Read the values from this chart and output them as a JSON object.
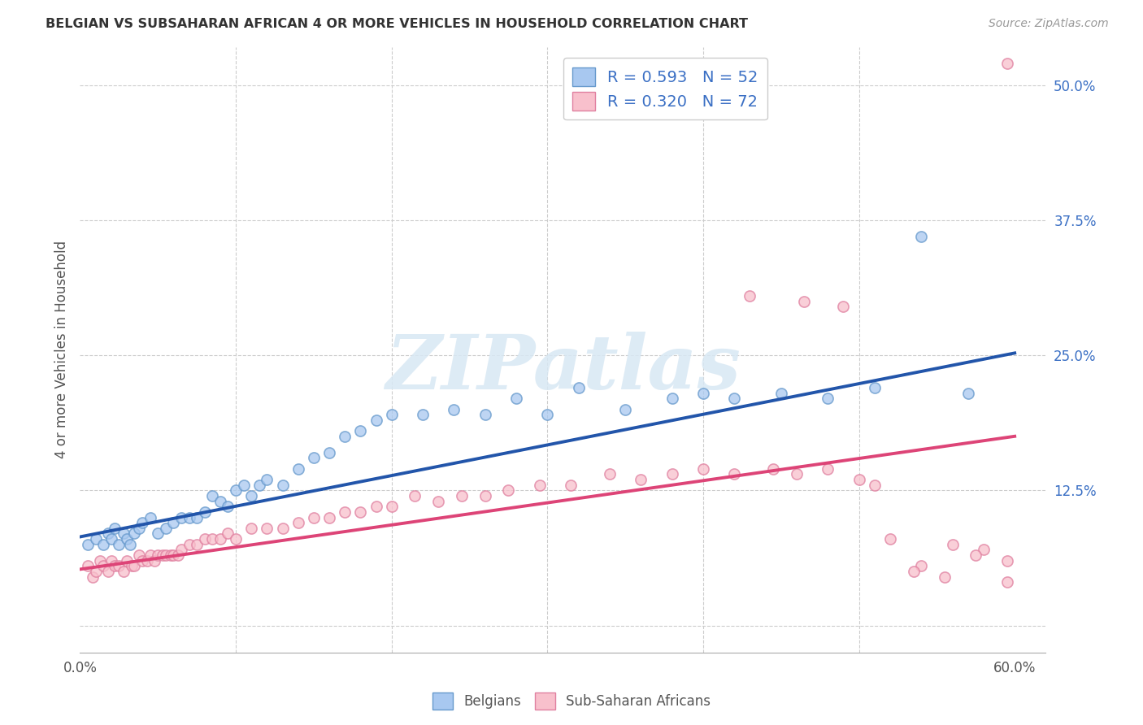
{
  "title": "BELGIAN VS SUBSAHARAN AFRICAN 4 OR MORE VEHICLES IN HOUSEHOLD CORRELATION CHART",
  "source": "Source: ZipAtlas.com",
  "ylabel": "4 or more Vehicles in Household",
  "xlim": [
    0.0,
    0.62
  ],
  "ylim": [
    -0.025,
    0.535
  ],
  "xticks": [
    0.0,
    0.1,
    0.2,
    0.3,
    0.4,
    0.5,
    0.6
  ],
  "xticklabels": [
    "0.0%",
    "",
    "",
    "",
    "",
    "",
    "60.0%"
  ],
  "ytick_positions": [
    0.0,
    0.125,
    0.25,
    0.375,
    0.5
  ],
  "yticklabels_right": [
    "",
    "12.5%",
    "25.0%",
    "37.5%",
    "50.0%"
  ],
  "blue_color": "#A8C8F0",
  "blue_edge_color": "#6699CC",
  "blue_line_color": "#2255AA",
  "pink_color": "#F8C0CC",
  "pink_edge_color": "#E080A0",
  "pink_line_color": "#DD4477",
  "blue_r": "0.593",
  "blue_n": "52",
  "pink_r": "0.320",
  "pink_n": "72",
  "legend_label_blue": "Belgians",
  "legend_label_pink": "Sub-Saharan Africans",
  "watermark": "ZIPatlas",
  "blue_scatter_x": [
    0.005,
    0.01,
    0.015,
    0.018,
    0.02,
    0.022,
    0.025,
    0.028,
    0.03,
    0.032,
    0.035,
    0.038,
    0.04,
    0.045,
    0.05,
    0.055,
    0.06,
    0.065,
    0.07,
    0.075,
    0.08,
    0.085,
    0.09,
    0.095,
    0.1,
    0.105,
    0.11,
    0.115,
    0.12,
    0.13,
    0.14,
    0.15,
    0.16,
    0.17,
    0.18,
    0.19,
    0.2,
    0.22,
    0.24,
    0.26,
    0.28,
    0.3,
    0.32,
    0.35,
    0.38,
    0.4,
    0.42,
    0.45,
    0.48,
    0.51,
    0.54,
    0.57
  ],
  "blue_scatter_y": [
    0.075,
    0.08,
    0.075,
    0.085,
    0.08,
    0.09,
    0.075,
    0.085,
    0.08,
    0.075,
    0.085,
    0.09,
    0.095,
    0.1,
    0.085,
    0.09,
    0.095,
    0.1,
    0.1,
    0.1,
    0.105,
    0.12,
    0.115,
    0.11,
    0.125,
    0.13,
    0.12,
    0.13,
    0.135,
    0.13,
    0.145,
    0.155,
    0.16,
    0.175,
    0.18,
    0.19,
    0.195,
    0.195,
    0.2,
    0.195,
    0.21,
    0.195,
    0.22,
    0.2,
    0.21,
    0.215,
    0.21,
    0.215,
    0.21,
    0.22,
    0.36,
    0.215
  ],
  "pink_scatter_x": [
    0.005,
    0.008,
    0.01,
    0.013,
    0.015,
    0.018,
    0.02,
    0.022,
    0.025,
    0.028,
    0.03,
    0.033,
    0.035,
    0.038,
    0.04,
    0.043,
    0.045,
    0.048,
    0.05,
    0.053,
    0.055,
    0.058,
    0.06,
    0.063,
    0.065,
    0.07,
    0.075,
    0.08,
    0.085,
    0.09,
    0.095,
    0.1,
    0.11,
    0.12,
    0.13,
    0.14,
    0.15,
    0.16,
    0.17,
    0.18,
    0.19,
    0.2,
    0.215,
    0.23,
    0.245,
    0.26,
    0.275,
    0.295,
    0.315,
    0.34,
    0.36,
    0.38,
    0.4,
    0.42,
    0.445,
    0.46,
    0.48,
    0.5,
    0.52,
    0.54,
    0.56,
    0.58,
    0.595,
    0.43,
    0.465,
    0.49,
    0.51,
    0.535,
    0.555,
    0.575,
    0.595,
    0.595
  ],
  "pink_scatter_y": [
    0.055,
    0.045,
    0.05,
    0.06,
    0.055,
    0.05,
    0.06,
    0.055,
    0.055,
    0.05,
    0.06,
    0.055,
    0.055,
    0.065,
    0.06,
    0.06,
    0.065,
    0.06,
    0.065,
    0.065,
    0.065,
    0.065,
    0.065,
    0.065,
    0.07,
    0.075,
    0.075,
    0.08,
    0.08,
    0.08,
    0.085,
    0.08,
    0.09,
    0.09,
    0.09,
    0.095,
    0.1,
    0.1,
    0.105,
    0.105,
    0.11,
    0.11,
    0.12,
    0.115,
    0.12,
    0.12,
    0.125,
    0.13,
    0.13,
    0.14,
    0.135,
    0.14,
    0.145,
    0.14,
    0.145,
    0.14,
    0.145,
    0.135,
    0.08,
    0.055,
    0.075,
    0.07,
    0.52,
    0.305,
    0.3,
    0.295,
    0.13,
    0.05,
    0.045,
    0.065,
    0.04,
    0.06
  ],
  "blue_line_y_start": 0.082,
  "blue_line_y_end": 0.252,
  "pink_line_y_start": 0.052,
  "pink_line_y_end": 0.175,
  "bg_color": "#FFFFFF",
  "grid_color": "#CCCCCC",
  "title_color": "#333333",
  "axis_label_color": "#555555",
  "tick_label_color_right": "#3A6FC4",
  "legend_r_color": "#3A6FC4",
  "legend_n_color": "#3A6FC4"
}
